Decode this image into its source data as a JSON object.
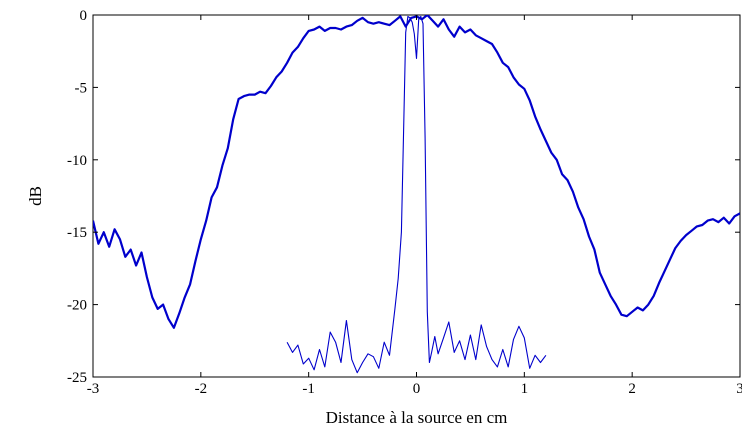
{
  "chart_data": {
    "type": "line",
    "title": "",
    "xlabel": "Distance à la source en cm",
    "ylabel": "dB",
    "xlim": [
      -3,
      3
    ],
    "ylim": [
      -25,
      0
    ],
    "xticks": [
      -3,
      -2,
      -1,
      0,
      1,
      2,
      3
    ],
    "yticks": [
      0,
      -5,
      -10,
      -15,
      -20,
      -25
    ],
    "grid": false,
    "legend": "none",
    "colors": {
      "line": "#0000cc",
      "axis": "#000000"
    },
    "series": [
      {
        "x": [
          -3.0,
          -2.95,
          -2.9,
          -2.85,
          -2.8,
          -2.75,
          -2.7,
          -2.65,
          -2.6,
          -2.55,
          -2.5,
          -2.45,
          -2.4,
          -2.35,
          -2.3,
          -2.25,
          -2.2,
          -2.15,
          -2.1,
          -2.05,
          -2.0,
          -1.95,
          -1.9,
          -1.85,
          -1.8,
          -1.75,
          -1.7,
          -1.65,
          -1.6,
          -1.55,
          -1.5,
          -1.45,
          -1.4,
          -1.35,
          -1.3,
          -1.25,
          -1.2,
          -1.15,
          -1.1,
          -1.05,
          -1.0,
          -0.95,
          -0.9,
          -0.85,
          -0.8,
          -0.75,
          -0.7,
          -0.65,
          -0.6,
          -0.55,
          -0.5,
          -0.45,
          -0.4,
          -0.35,
          -0.3,
          -0.25,
          -0.2,
          -0.15,
          -0.1,
          -0.05,
          0.0,
          0.05,
          0.1,
          0.15,
          0.2,
          0.25,
          0.3,
          0.35,
          0.4,
          0.45,
          0.5,
          0.55,
          0.6,
          0.65,
          0.7,
          0.75,
          0.8,
          0.85,
          0.9,
          0.95,
          1.0,
          1.05,
          1.1,
          1.15,
          1.2,
          1.25,
          1.3,
          1.35,
          1.4,
          1.45,
          1.5,
          1.55,
          1.6,
          1.65,
          1.7,
          1.75,
          1.8,
          1.85,
          1.9,
          1.95,
          2.0,
          2.05,
          2.1,
          2.15,
          2.2,
          2.25,
          2.3,
          2.35,
          2.4,
          2.45,
          2.5,
          2.55,
          2.6,
          2.65,
          2.7,
          2.75,
          2.8,
          2.85,
          2.9,
          2.95,
          3.0
        ],
        "values": [
          -14.2,
          -15.8,
          -15.0,
          -16.0,
          -14.8,
          -15.5,
          -16.7,
          -16.2,
          -17.3,
          -16.4,
          -18.1,
          -19.5,
          -20.3,
          -20.0,
          -21.0,
          -21.6,
          -20.6,
          -19.5,
          -18.6,
          -17.0,
          -15.5,
          -14.2,
          -12.6,
          -11.9,
          -10.4,
          -9.2,
          -7.2,
          -5.8,
          -5.6,
          -5.5,
          -5.5,
          -5.3,
          -5.4,
          -4.9,
          -4.3,
          -3.9,
          -3.3,
          -2.6,
          -2.2,
          -1.6,
          -1.1,
          -1.0,
          -0.8,
          -1.1,
          -0.9,
          -0.9,
          -1.0,
          -0.8,
          -0.7,
          -0.4,
          -0.2,
          -0.5,
          -0.6,
          -0.5,
          -0.6,
          -0.7,
          -0.4,
          -0.1,
          -0.8,
          -0.2,
          -0.1,
          -0.3,
          0.0,
          -0.4,
          -0.8,
          -0.3,
          -1.0,
          -1.5,
          -0.8,
          -1.2,
          -1.0,
          -1.4,
          -1.6,
          -1.8,
          -2.0,
          -2.6,
          -3.3,
          -3.6,
          -4.3,
          -4.8,
          -5.1,
          -5.9,
          -7.0,
          -7.9,
          -8.7,
          -9.5,
          -10.0,
          -11.0,
          -11.4,
          -12.2,
          -13.3,
          -14.1,
          -15.3,
          -16.2,
          -17.8,
          -18.6,
          -19.4,
          -20.0,
          -20.7,
          -20.8,
          -20.5,
          -20.2,
          -20.4,
          -20.0,
          -19.4,
          -18.5,
          -17.7,
          -16.9,
          -16.1,
          -15.6,
          -15.2,
          -14.9,
          -14.6,
          -14.5,
          -14.2,
          -14.1,
          -14.3,
          -14.0,
          -14.4,
          -13.9,
          -13.7
        ]
      },
      {
        "x": [
          -1.2,
          -1.15,
          -1.1,
          -1.05,
          -1.0,
          -0.95,
          -0.9,
          -0.85,
          -0.8,
          -0.75,
          -0.7,
          -0.65,
          -0.6,
          -0.55,
          -0.5,
          -0.45,
          -0.4,
          -0.35,
          -0.3,
          -0.25,
          -0.2,
          -0.17,
          -0.14,
          -0.12,
          -0.1,
          -0.08,
          -0.06,
          -0.04,
          -0.02,
          0.0,
          0.02,
          0.04,
          0.06,
          0.08,
          0.1,
          0.12,
          0.14,
          0.17,
          0.2,
          0.25,
          0.3,
          0.35,
          0.4,
          0.45,
          0.5,
          0.55,
          0.6,
          0.65,
          0.7,
          0.75,
          0.8,
          0.85,
          0.9,
          0.95,
          1.0,
          1.05,
          1.1,
          1.15,
          1.2
        ],
        "values": [
          -22.6,
          -23.3,
          -22.8,
          -24.1,
          -23.7,
          -24.5,
          -23.1,
          -24.3,
          -21.9,
          -22.6,
          -24.0,
          -21.1,
          -23.8,
          -24.7,
          -24.0,
          -23.4,
          -23.6,
          -24.4,
          -22.6,
          -23.5,
          -20.3,
          -18.2,
          -15.0,
          -8.0,
          -1.2,
          -0.1,
          -0.2,
          -0.5,
          -1.3,
          -3.0,
          -0.3,
          -0.1,
          -0.6,
          -8.5,
          -20.5,
          -24.0,
          -23.3,
          -22.2,
          -23.4,
          -22.3,
          -21.2,
          -23.3,
          -22.5,
          -23.8,
          -22.1,
          -23.8,
          -21.4,
          -22.9,
          -23.8,
          -24.3,
          -23.1,
          -24.3,
          -22.4,
          -21.5,
          -22.3,
          -24.4,
          -23.5,
          -24.0,
          -23.5
        ]
      }
    ]
  }
}
